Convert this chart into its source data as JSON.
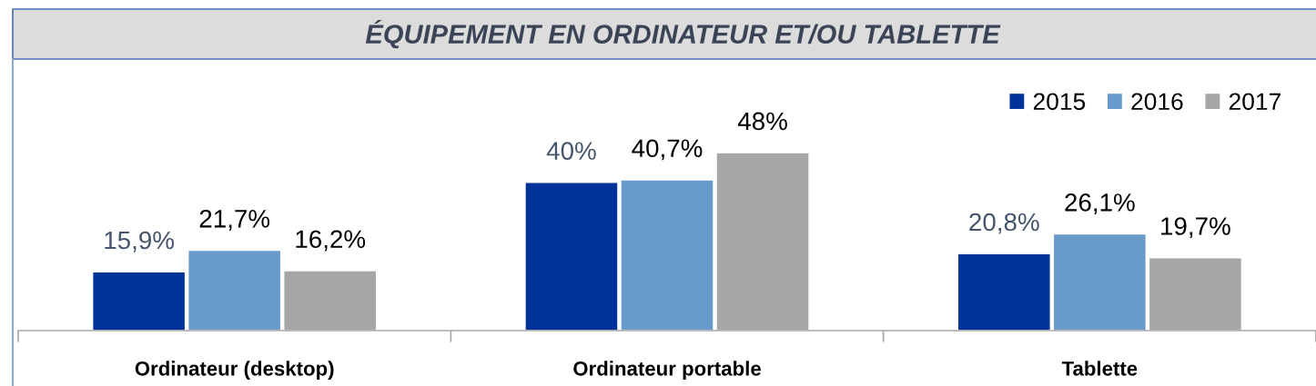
{
  "chart_data": {
    "type": "bar",
    "title": "ÉQUIPEMENT EN ORDINATEUR ET/OU TABLETTE",
    "categories": [
      "Ordinateur (desktop)",
      "Ordinateur portable",
      "Tablette"
    ],
    "series": [
      {
        "name": "2015",
        "color": "#003399",
        "values": [
          15.9,
          40,
          20.8
        ],
        "value_labels": [
          "15,9%",
          "40%",
          "20,8%"
        ]
      },
      {
        "name": "2016",
        "color": "#689bcb",
        "values": [
          21.7,
          40.7,
          26.1
        ],
        "value_labels": [
          "21,7%",
          "40,7%",
          "26,1%"
        ]
      },
      {
        "name": "2017",
        "color": "#a6a6a6",
        "values": [
          16.2,
          48,
          19.7
        ],
        "value_labels": [
          "16,2%",
          "48%",
          "19,7%"
        ]
      }
    ],
    "legend": "top right"
  }
}
